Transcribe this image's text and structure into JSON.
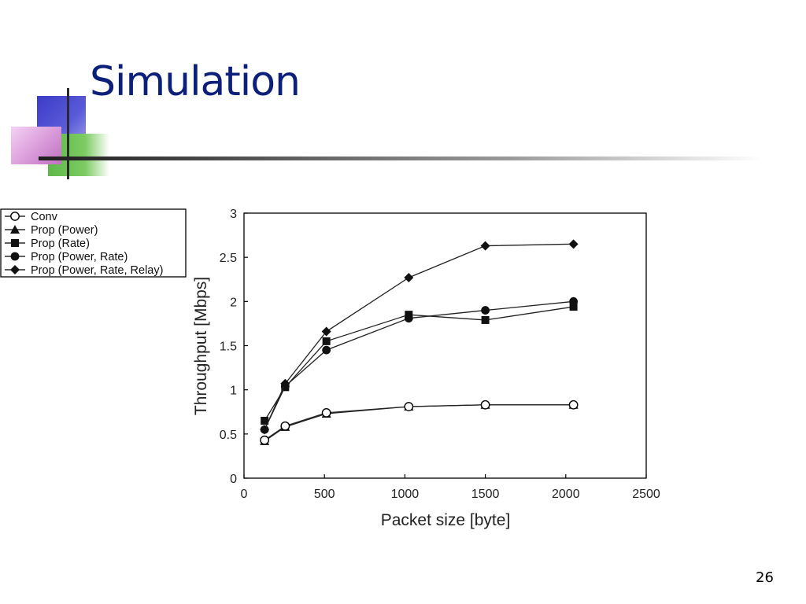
{
  "slide": {
    "title": "Simulation",
    "page_number": "26"
  },
  "chart_data": {
    "type": "line",
    "xlabel": "Packet size [byte]",
    "ylabel": "Throughput [Mbps]",
    "xlim": [
      0,
      2500
    ],
    "ylim": [
      0,
      3
    ],
    "x_ticks": [
      0,
      500,
      1000,
      1500,
      2000,
      2500
    ],
    "y_ticks": [
      0,
      0.5,
      1,
      1.5,
      2,
      2.5,
      3
    ],
    "x_tick_labels": [
      "0",
      "500",
      "1000",
      "1500",
      "2000",
      "2500"
    ],
    "y_tick_labels": [
      "0",
      "0.5",
      "1",
      "1.5",
      "2",
      "2.5",
      "3"
    ],
    "grid": false,
    "legend_position": "top-left outside",
    "series": [
      {
        "name": "Conv",
        "marker": "open-circle",
        "x": [
          128,
          256,
          512,
          1024,
          1500,
          2048
        ],
        "y": [
          0.43,
          0.59,
          0.74,
          0.81,
          0.83,
          0.83
        ]
      },
      {
        "name": "Prop (Power)",
        "marker": "triangle",
        "x": [
          128,
          256,
          512,
          1024,
          1500,
          2048
        ],
        "y": [
          0.42,
          0.58,
          0.73,
          0.81,
          0.83,
          0.83
        ]
      },
      {
        "name": "Prop (Rate)",
        "marker": "square",
        "x": [
          128,
          256,
          512,
          1024,
          1500,
          2048
        ],
        "y": [
          0.65,
          1.03,
          1.55,
          1.85,
          1.79,
          1.94
        ]
      },
      {
        "name": "Prop (Power, Rate)",
        "marker": "filled-circle",
        "x": [
          128,
          256,
          512,
          1024,
          1500,
          2048
        ],
        "y": [
          0.55,
          1.04,
          1.45,
          1.81,
          1.9,
          2.0
        ]
      },
      {
        "name": "Prop (Power, Rate, Relay)",
        "marker": "diamond",
        "x": [
          128,
          256,
          512,
          1024,
          1500,
          2048
        ],
        "y": [
          0.55,
          1.07,
          1.66,
          2.27,
          2.63,
          2.65
        ]
      }
    ]
  }
}
